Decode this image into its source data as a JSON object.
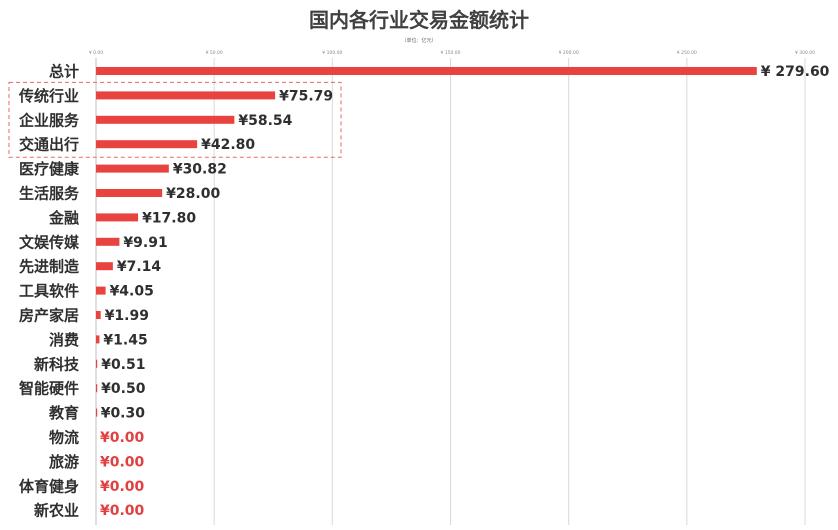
{
  "chart_data": {
    "type": "bar",
    "orientation": "horizontal",
    "title": "国内各行业交易金额统计",
    "unit_label": "（单位：亿元）",
    "xlim": [
      0,
      300
    ],
    "ticks": [
      "¥ 0.00",
      "¥ 50.00",
      "¥ 100.00",
      "¥ 150.00",
      "¥ 200.00",
      "¥ 250.00",
      "¥ 300.00"
    ],
    "tick_values": [
      0,
      50,
      100,
      150,
      200,
      250,
      300
    ],
    "categories": [
      "总计",
      "传统行业",
      "企业服务",
      "交通出行",
      "医疗健康",
      "生活服务",
      "金融",
      "文娱传媒",
      "先进制造",
      "工具软件",
      "房产家居",
      "消费",
      "新科技",
      "智能硬件",
      "教育",
      "物流",
      "旅游",
      "体育健身",
      "新农业"
    ],
    "values": [
      279.6,
      75.79,
      58.54,
      42.8,
      30.82,
      28.0,
      17.8,
      9.91,
      7.14,
      4.05,
      1.99,
      1.45,
      0.51,
      0.5,
      0.3,
      0.0,
      0.0,
      0.0,
      0.0
    ],
    "value_labels": [
      "¥ 279.60",
      "¥75.79",
      "¥58.54",
      "¥42.80",
      "¥30.82",
      "¥28.00",
      "¥17.80",
      "¥9.91",
      "¥7.14",
      "¥4.05",
      "¥1.99",
      "¥1.45",
      "¥0.51",
      "¥0.50",
      "¥0.30",
      "¥0.00",
      "¥0.00",
      "¥0.00",
      "¥0.00"
    ],
    "highlighted_categories": [
      "传统行业",
      "企业服务",
      "交通出行"
    ],
    "colors": {
      "bar": "#e8433f",
      "zero_label": "#e04040",
      "text": "#2f2f2f",
      "highlight_box": "#e56a66"
    },
    "grid": true
  }
}
